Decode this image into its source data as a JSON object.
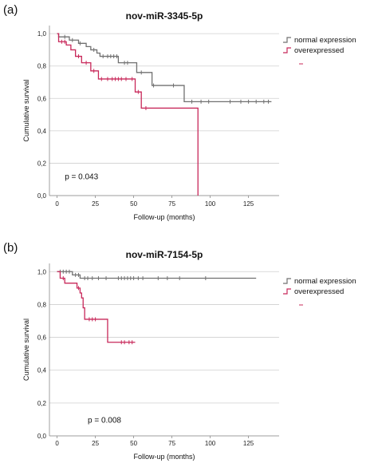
{
  "panels": [
    {
      "letter": "(a)"
    },
    {
      "letter": "(b)"
    }
  ],
  "colors": {
    "normal": "#707070",
    "overexpressed": "#c8285a",
    "grid": "#cfcfcf",
    "axis": "#8a8a8a"
  },
  "chart_data": [
    {
      "type": "line",
      "title": "nov-miR-3345-5p",
      "xlabel": "Follow-up (months)",
      "ylabel": "Cumulative survival",
      "xlim": [
        -5,
        145
      ],
      "ylim": [
        0,
        1.05
      ],
      "x_ticks": [
        "0",
        "25",
        "50",
        "75",
        "100",
        "125"
      ],
      "y_ticks": [
        "0,0",
        "0,2",
        "0,4",
        "0,6",
        "0,8",
        "1,0"
      ],
      "annotation": "p = 0.043",
      "grid": "horizontal",
      "legend_position": "top-right",
      "series": [
        {
          "name": "normal expression",
          "steps": [
            [
              0,
              1.0
            ],
            [
              1,
              0.98
            ],
            [
              8,
              0.96
            ],
            [
              14,
              0.94
            ],
            [
              19,
              0.92
            ],
            [
              22,
              0.9
            ],
            [
              26,
              0.88
            ],
            [
              28,
              0.86
            ],
            [
              40,
              0.82
            ],
            [
              52,
              0.76
            ],
            [
              62,
              0.68
            ],
            [
              83,
              0.58
            ],
            [
              140,
              0.58
            ]
          ],
          "censored": [
            5,
            10,
            15,
            24,
            30,
            33,
            35,
            37,
            39,
            44,
            46,
            55,
            63,
            76,
            88,
            94,
            99,
            113,
            120,
            125,
            130,
            135,
            138
          ]
        },
        {
          "name": "overexpressed",
          "steps": [
            [
              0,
              1.0
            ],
            [
              1,
              0.95
            ],
            [
              6,
              0.93
            ],
            [
              9,
              0.9
            ],
            [
              12,
              0.86
            ],
            [
              16,
              0.82
            ],
            [
              22,
              0.77
            ],
            [
              27,
              0.72
            ],
            [
              51,
              0.64
            ],
            [
              55,
              0.54
            ],
            [
              92,
              0.0
            ]
          ],
          "censored": [
            3,
            5,
            14,
            19,
            24,
            29,
            33,
            36,
            38,
            40,
            42,
            45,
            49,
            53,
            58
          ]
        }
      ]
    },
    {
      "type": "line",
      "title": "nov-miR-7154-5p",
      "xlabel": "Follow-up (months)",
      "ylabel": "Cumulative survival",
      "xlim": [
        -5,
        145
      ],
      "ylim": [
        0,
        1.05
      ],
      "x_ticks": [
        "0",
        "25",
        "50",
        "75",
        "100",
        "125"
      ],
      "y_ticks": [
        "0,0",
        "0,2",
        "0,4",
        "0,6",
        "0,8",
        "1,0"
      ],
      "annotation": "p = 0.008",
      "grid": "horizontal",
      "legend_position": "top-right",
      "series": [
        {
          "name": "normal expression",
          "steps": [
            [
              0,
              1.0
            ],
            [
              10,
              0.98
            ],
            [
              15,
              0.96
            ],
            [
              130,
              0.96
            ]
          ],
          "censored": [
            2,
            4,
            6,
            8,
            12,
            14,
            18,
            20,
            23,
            27,
            32,
            40,
            42,
            44,
            46,
            48,
            50,
            53,
            56,
            66,
            72,
            80,
            97
          ]
        },
        {
          "name": "overexpressed",
          "steps": [
            [
              0,
              1.0
            ],
            [
              2,
              0.96
            ],
            [
              5,
              0.93
            ],
            [
              13,
              0.9
            ],
            [
              15,
              0.87
            ],
            [
              16,
              0.84
            ],
            [
              17,
              0.78
            ],
            [
              18,
              0.71
            ],
            [
              31,
              0.71
            ],
            [
              33,
              0.57
            ],
            [
              51,
              0.57
            ]
          ],
          "censored": [
            4,
            14,
            21,
            23,
            25,
            42,
            44,
            47,
            49
          ]
        }
      ]
    }
  ]
}
